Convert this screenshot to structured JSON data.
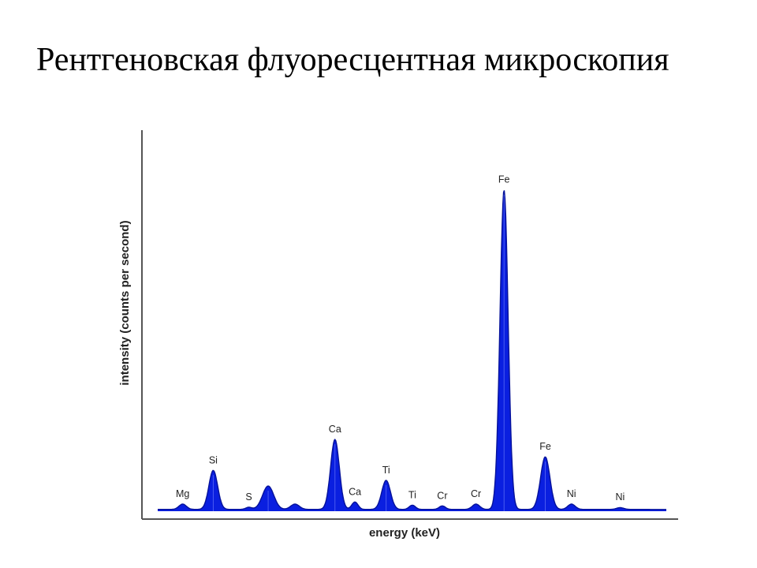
{
  "slide": {
    "title": "Рентгеновская флуоресцентная микроскопия"
  },
  "chart_data": {
    "type": "area",
    "xlabel": "energy (keV)",
    "ylabel": "intensity (counts per second)",
    "ylim": [
      0,
      100
    ],
    "grid": false,
    "baseline": 0.5,
    "fill_color": "#0a1fe0",
    "peaks": [
      {
        "label": "Mg",
        "x": 1.25,
        "y": 1.5,
        "labeled": true
      },
      {
        "label": "Si",
        "x": 1.74,
        "y": 11.0,
        "labeled": true
      },
      {
        "label": "S",
        "x": 2.31,
        "y": 0.6,
        "labeled": true
      },
      {
        "label": "",
        "x": 2.62,
        "y": 6.6,
        "labeled": false
      },
      {
        "label": "",
        "x": 3.05,
        "y": 1.5,
        "labeled": false
      },
      {
        "label": "Ca",
        "x": 3.69,
        "y": 19.7,
        "labeled": true
      },
      {
        "label": "Ca",
        "x": 4.01,
        "y": 2.1,
        "labeled": true
      },
      {
        "label": "Ti",
        "x": 4.51,
        "y": 8.2,
        "labeled": true
      },
      {
        "label": "Ti",
        "x": 4.93,
        "y": 1.2,
        "labeled": true
      },
      {
        "label": "Cr",
        "x": 5.41,
        "y": 1.0,
        "labeled": true
      },
      {
        "label": "Cr",
        "x": 5.95,
        "y": 1.5,
        "labeled": true
      },
      {
        "label": "Fe",
        "x": 6.4,
        "y": 90.0,
        "labeled": true
      },
      {
        "label": "Fe",
        "x": 7.06,
        "y": 14.8,
        "labeled": true
      },
      {
        "label": "Ni",
        "x": 7.48,
        "y": 1.5,
        "labeled": true
      },
      {
        "label": "Ni",
        "x": 8.26,
        "y": 0.5,
        "labeled": true
      }
    ]
  }
}
